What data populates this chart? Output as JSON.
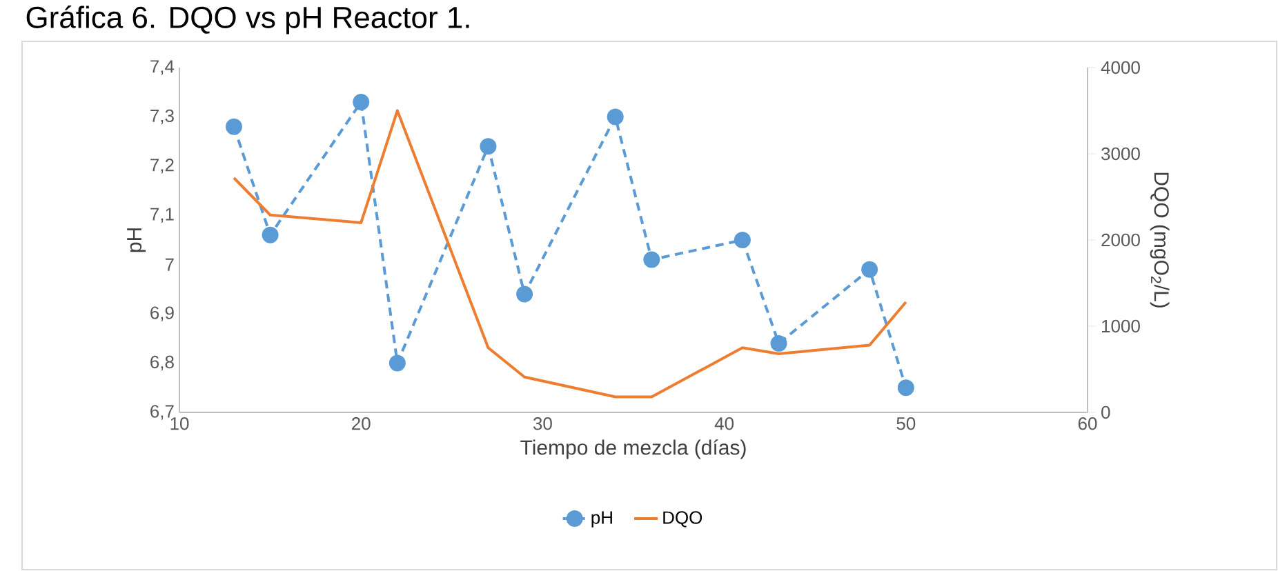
{
  "chart_data": {
    "type": "line",
    "title": "Gráfica 6. DQO vs pH Reactor 1.",
    "xlabel": "Tiempo de mezcla (días)",
    "ylabel": "pH",
    "y2label": "DQO (mgO$_{2}$/L)",
    "x": [
      13,
      15,
      20,
      22,
      27,
      29,
      34,
      36,
      41,
      43,
      48,
      50
    ],
    "series": [
      {
        "name": "pH",
        "color": "#5b9bd5",
        "marker": "circle",
        "line_style": "dashed",
        "values": [
          7.28,
          7.06,
          7.33,
          6.8,
          7.24,
          6.94,
          7.3,
          7.01,
          7.05,
          6.84,
          6.99,
          6.75
        ]
      },
      {
        "name": "DQO",
        "color": "#ed7d31",
        "axis": "y2",
        "marker": "none",
        "line_style": "solid",
        "values": [
          2720,
          2290,
          2200,
          3500,
          750,
          410,
          180,
          180,
          750,
          680,
          780,
          1280
        ]
      }
    ],
    "xlim": [
      10,
      60
    ],
    "xticks": [
      10,
      20,
      30,
      40,
      50,
      60
    ],
    "ylim": [
      6.7,
      7.4
    ],
    "yticks": [
      {
        "value": 6.7,
        "label": "6,7"
      },
      {
        "value": 6.8,
        "label": "6,8"
      },
      {
        "value": 6.9,
        "label": "6,9"
      },
      {
        "value": 7.0,
        "label": "7"
      },
      {
        "value": 7.1,
        "label": "7,1"
      },
      {
        "value": 7.2,
        "label": "7,2"
      },
      {
        "value": 7.3,
        "label": "7,3"
      },
      {
        "value": 7.4,
        "label": "7,4"
      }
    ],
    "y2lim": [
      0,
      4000
    ],
    "y2ticks": [
      0,
      1000,
      2000,
      3000,
      4000
    ],
    "legend": "bottom",
    "grid": false
  }
}
